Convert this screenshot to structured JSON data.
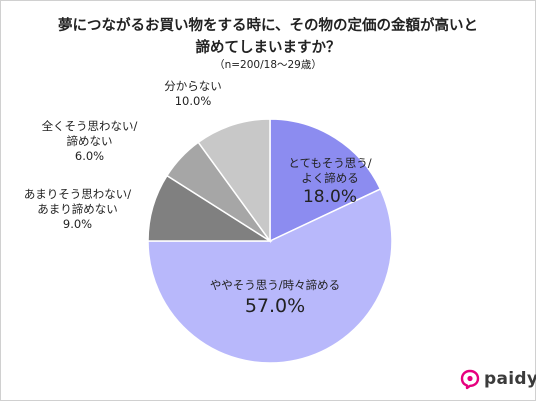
{
  "header": {
    "title_line1": "夢につながるお買い物をする時に、その物の定価の金額が高いと",
    "title_line2": "諦めてしまいますか？",
    "subtitle": "（n=200/18～29歳）"
  },
  "brand": {
    "name": "paidy",
    "color": "#e6007e"
  },
  "chart_data": {
    "type": "pie",
    "start_angle_deg": 0,
    "direction": "clockwise",
    "slices": [
      {
        "label_line1": "とてもそう思う/",
        "label_line2": "よく諦める",
        "value": 18.0,
        "value_label": "18.0%",
        "color": "#8c8cf0"
      },
      {
        "label_line1": "ややそう思う/時々諦める",
        "label_line2": "",
        "value": 57.0,
        "value_label": "57.0%",
        "color": "#b8b8fb"
      },
      {
        "label_line1": "あまりそう思わない/",
        "label_line2": "あまり諦めない",
        "value": 9.0,
        "value_label": "9.0%",
        "color": "#808080"
      },
      {
        "label_line1": "全くそう思わない/",
        "label_line2": "諦めない",
        "value": 6.0,
        "value_label": "6.0%",
        "color": "#a6a6a6"
      },
      {
        "label_line1": "分からない",
        "label_line2": "",
        "value": 10.0,
        "value_label": "10.0%",
        "color": "#c8c8c8"
      }
    ]
  }
}
